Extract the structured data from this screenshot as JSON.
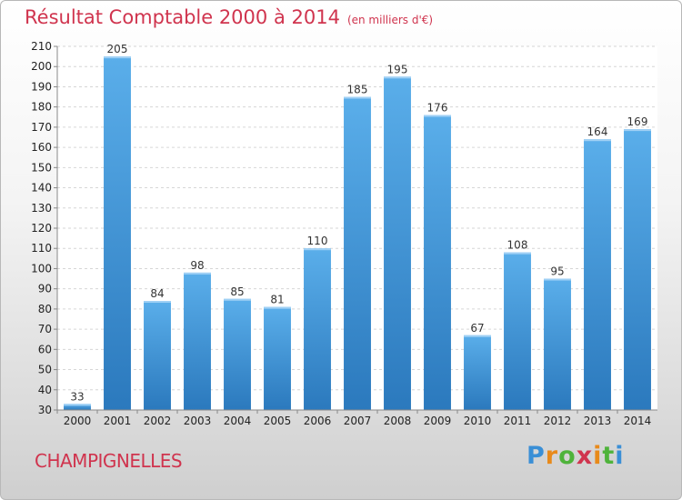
{
  "title": "Résultat Comptable 2000 à 2014",
  "unit_note": "(en milliers d'€)",
  "commune": "CHAMPIGNELLES",
  "logo": {
    "text": "Proxiti"
  },
  "colors": {
    "bar": "#4a9fe0",
    "bar_dark": "#2f7fc4",
    "title": "#d0344e"
  },
  "chart_data": {
    "type": "bar",
    "title": "Résultat Comptable 2000 à 2014",
    "subtitle": "(en milliers d'€)",
    "categories": [
      "2000",
      "2001",
      "2002",
      "2003",
      "2004",
      "2005",
      "2006",
      "2007",
      "2008",
      "2009",
      "2010",
      "2011",
      "2012",
      "2013",
      "2014"
    ],
    "values": [
      33,
      205,
      84,
      98,
      85,
      81,
      110,
      185,
      195,
      176,
      67,
      108,
      95,
      164,
      169
    ],
    "ylim": [
      30,
      210
    ],
    "yticks": [
      30,
      40,
      50,
      60,
      70,
      80,
      90,
      100,
      110,
      120,
      130,
      140,
      150,
      160,
      170,
      180,
      190,
      200,
      210
    ],
    "grid": true,
    "data_labels": true
  }
}
